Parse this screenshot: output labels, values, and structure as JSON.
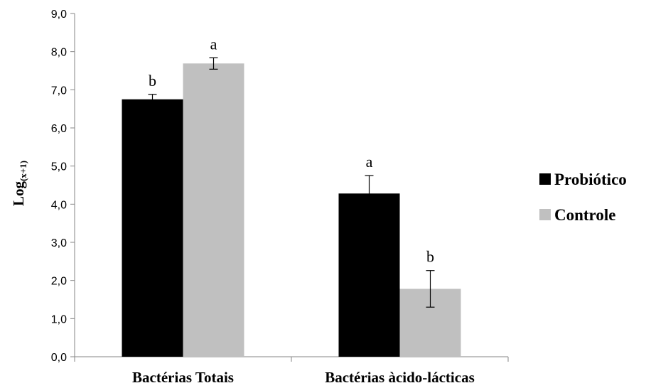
{
  "chart_data": {
    "type": "bar",
    "title": "",
    "xlabel": "",
    "ylabel": "Log",
    "ylabel_subscript": "(x+1)",
    "ylim": [
      0,
      9
    ],
    "yticks": [
      "0,0",
      "1,0",
      "2,0",
      "3,0",
      "4,0",
      "5,0",
      "6,0",
      "7,0",
      "8,0",
      "9,0"
    ],
    "categories": [
      "Bactérias Totais",
      "Bactérias àcido-lácticas"
    ],
    "series": [
      {
        "name": "Probiótico",
        "color": "#000000",
        "values": [
          6.75,
          4.28
        ],
        "errors": [
          0.13,
          0.47
        ],
        "annotations": [
          "b",
          "a"
        ]
      },
      {
        "name": "Controle",
        "color": "#c0c0c0",
        "values": [
          7.69,
          1.78
        ],
        "errors": [
          0.15,
          0.48
        ],
        "annotations": [
          "a",
          "b"
        ]
      }
    ],
    "legend_position": "right",
    "grid": false
  }
}
